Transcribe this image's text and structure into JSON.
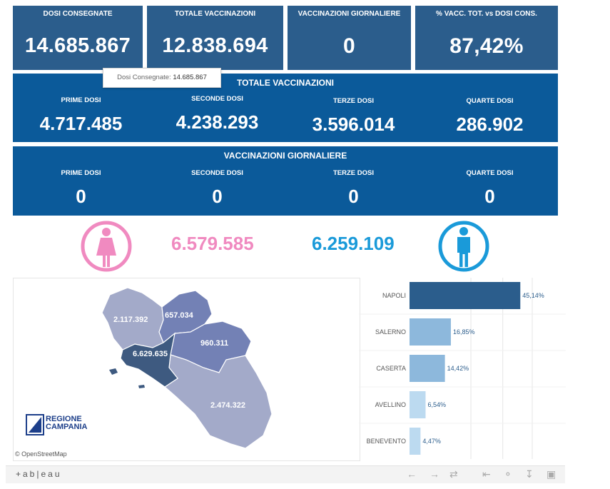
{
  "kpis": [
    {
      "title": "DOSI  CONSEGNATE",
      "value": "14.685.867"
    },
    {
      "title": "TOTALE VACCINAZIONI",
      "value": "12.838.694"
    },
    {
      "title": "VACCINAZIONI GIORNALIERE",
      "value": "0"
    },
    {
      "title": "% VACC. TOT. vs DOSI CONS.",
      "value": "87,42%"
    }
  ],
  "tooltip": {
    "label": "Dosi Consegnate:",
    "value": "14.685.867"
  },
  "totale": {
    "title": "TOTALE VACCINAZIONI",
    "cells": [
      {
        "label": "PRIME DOSI",
        "value": "4.717.485"
      },
      {
        "label": "SECONDE DOSI",
        "value": "4.238.293"
      },
      {
        "label": "TERZE DOSI",
        "value": "3.596.014"
      },
      {
        "label": "QUARTE DOSI",
        "value": "286.902"
      }
    ]
  },
  "giornaliere": {
    "title": "VACCINAZIONI GIORNALIERE",
    "cells": [
      {
        "label": "PRIME DOSI",
        "value": "0"
      },
      {
        "label": "SECONDE DOSI",
        "value": "0"
      },
      {
        "label": "TERZE DOSI",
        "value": "0"
      },
      {
        "label": "QUARTE DOSI",
        "value": "0"
      }
    ]
  },
  "gender": {
    "female_value": "6.579.585",
    "male_value": "6.259.109",
    "female_color": "#f08ac0",
    "male_color": "#1a9ad9",
    "female_icon": "female-person-icon",
    "male_icon": "male-person-icon"
  },
  "map": {
    "provinces": [
      {
        "name": "Caserta",
        "value": "2.117.392",
        "color": "#a3aac9"
      },
      {
        "name": "Benevento",
        "value": "657.034",
        "color": "#7381b5"
      },
      {
        "name": "Avellino",
        "value": "960.311",
        "color": "#7381b5"
      },
      {
        "name": "Napoli",
        "value": "6.629.635",
        "color": "#3e5a80"
      },
      {
        "name": "Salerno",
        "value": "2.474.322",
        "color": "#a3aac9"
      }
    ],
    "logo_line1": "REGIONE",
    "logo_line2": "CAMPANIA",
    "credit": "© OpenStreetMap"
  },
  "chart_data": {
    "type": "bar",
    "orientation": "horizontal",
    "categories": [
      "NAPOLI",
      "SALERNO",
      "CASERTA",
      "AVELLINO",
      "BENEVENTO"
    ],
    "values": [
      45.14,
      16.85,
      14.42,
      6.54,
      4.47
    ],
    "value_labels": [
      "45,14%",
      "16,85%",
      "14,42%",
      "6,54%",
      "4,47%"
    ],
    "colors": [
      "#2b5d8c",
      "#8db8dc",
      "#8db8dc",
      "#bcdaf0",
      "#bcdaf0"
    ],
    "xlim": [
      0,
      50
    ],
    "grid": true
  },
  "footer": {
    "brand": "+ab|eau",
    "controls": [
      "undo-icon",
      "redo-icon",
      "revert-icon",
      "pause-icon",
      "share-icon",
      "download-icon",
      "fullscreen-icon"
    ]
  }
}
